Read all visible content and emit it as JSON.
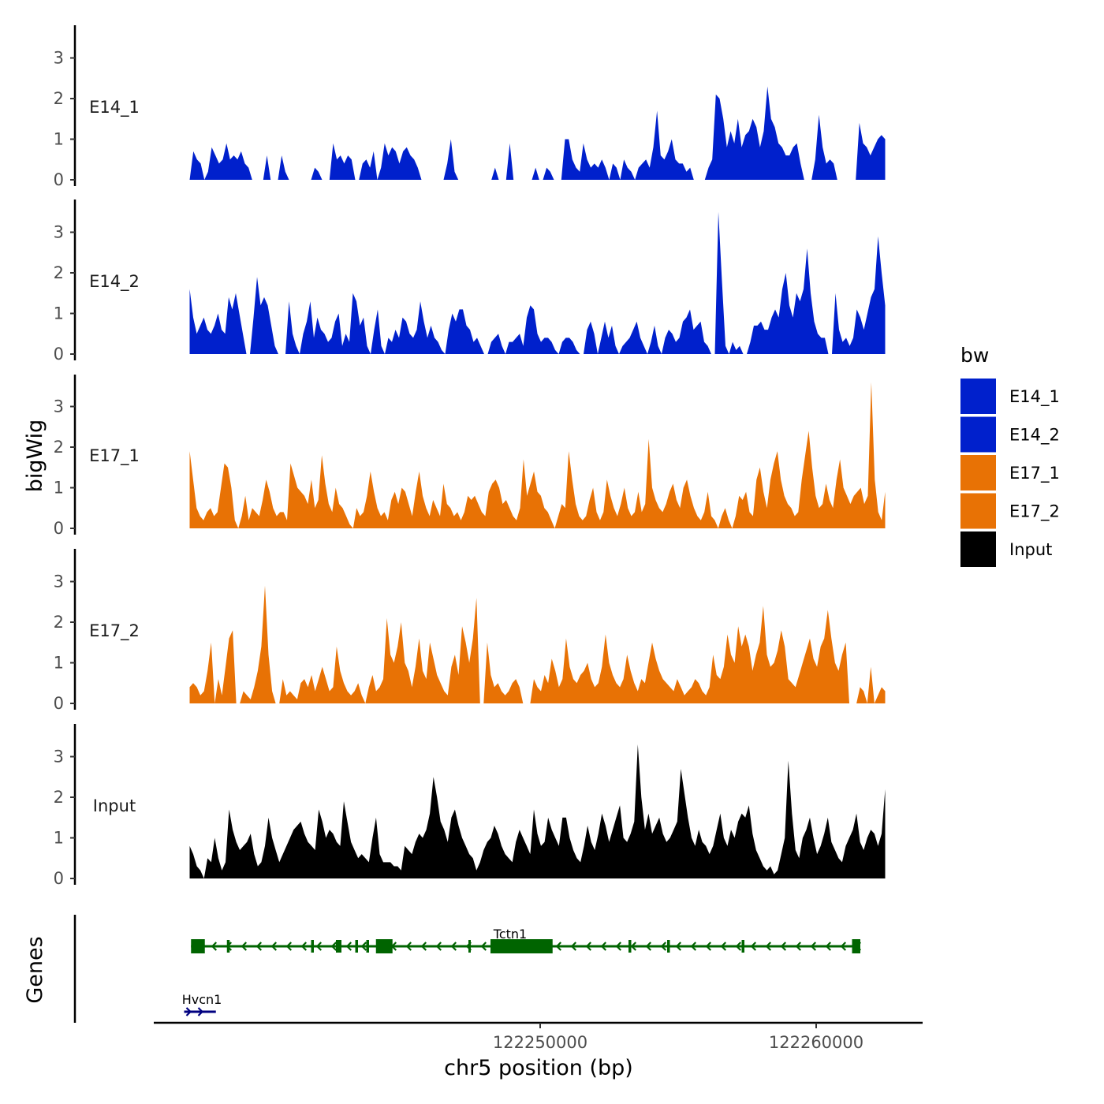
{
  "chart_data": {
    "type": "area",
    "xlabel": "chr5 position (bp)",
    "ylabel": "bigWig",
    "genes_label": "Genes",
    "xlim": [
      122236000,
      122263800
    ],
    "x_ticks": [
      122250000,
      122260000
    ],
    "x_tick_labels": [
      "122250000",
      "122260000"
    ],
    "y_ticks": [
      0,
      1,
      2,
      3
    ],
    "ylim": [
      0,
      3.7
    ],
    "legend": {
      "title": "bw",
      "entries": [
        {
          "label": "E14_1",
          "color": "#0020cc"
        },
        {
          "label": "E14_2",
          "color": "#0020cc"
        },
        {
          "label": "E17_1",
          "color": "#e87205"
        },
        {
          "label": "E17_2",
          "color": "#e87205"
        },
        {
          "label": "Input",
          "color": "#000000"
        }
      ]
    },
    "x_start": 122237300,
    "x_end": 122262500,
    "tracks": [
      {
        "name": "E14_1",
        "color": "#0020cc",
        "values": [
          0.2,
          0.7,
          0.5,
          0.4,
          0,
          0.2,
          0.8,
          0.6,
          0.4,
          0.5,
          0.9,
          0.5,
          0.6,
          0.5,
          0.7,
          0.4,
          0.3,
          0.5,
          0,
          0,
          0,
          0.6,
          0,
          0,
          0,
          0.6,
          0.2,
          0.3,
          0,
          0.2,
          0.4,
          0.2,
          0,
          0,
          0.3,
          0.2,
          0,
          0.2,
          0.8,
          0.9,
          0.5,
          0.6,
          0.4,
          0.6,
          0.5,
          0.3,
          0.2,
          0.4,
          0.5,
          0.3,
          0.7,
          0,
          0.3,
          0.9,
          0.6,
          0.8,
          0.7,
          0.4,
          0.7,
          0.8,
          0.6,
          0.5,
          0.3,
          0,
          0,
          0,
          0,
          0.3,
          0,
          0,
          0.4,
          1.0,
          0.2,
          0,
          0,
          0.5,
          0.3,
          0,
          0,
          0.4,
          0,
          0,
          0,
          0.3,
          0,
          0,
          0.7,
          0.9,
          0.6,
          0.3,
          0.1,
          0,
          0,
          0.5,
          0.3,
          0,
          0,
          0.3,
          0.2,
          0,
          0.2,
          0.3,
          1.0,
          1.0,
          0.5,
          0.3,
          0.2,
          0.9,
          0.5,
          0.3,
          0.4,
          0.3,
          0.5,
          0.3,
          0,
          0.4,
          0.3,
          0,
          0.5,
          0.3,
          0.2,
          0,
          0.3,
          0.4,
          0.5,
          0.3,
          0.8,
          1.7,
          0.6,
          0.5,
          0.7,
          1.0,
          0.5,
          0.4,
          0.4,
          0.2,
          0.3,
          0,
          0,
          0,
          0,
          0.3,
          0.5,
          2.1,
          2.0,
          1.5,
          0.8,
          1.2,
          0.9,
          1.5,
          0.8,
          1.1,
          1.2,
          1.5,
          1.3,
          0.8,
          1.2,
          2.3,
          1.5,
          1.3,
          0.9,
          0.8,
          0.6,
          0.6,
          0.8,
          0.9,
          0.4,
          0,
          0,
          0,
          0.5,
          1.6,
          0.8,
          0.4,
          0.5,
          0.4,
          0.3,
          0.9,
          0.5,
          0.4,
          0.4,
          0.5,
          1.4,
          0.9,
          0.8,
          0.6,
          0.8,
          1.0,
          1.1,
          1.0
        ],
        "gaps": [
          [
            122237300,
            122237330
          ],
          [
            122239500,
            122240000
          ],
          [
            122240900,
            122241500
          ],
          [
            122242200,
            122242400
          ],
          [
            122243300,
            122243500
          ],
          [
            122246200,
            122246500
          ],
          [
            122247100,
            122248300
          ],
          [
            122248500,
            122248800
          ],
          [
            122249000,
            122249700
          ],
          [
            122250400,
            122250800
          ],
          [
            122260700,
            122261500
          ]
        ]
      },
      {
        "name": "E14_2",
        "color": "#0020cc",
        "values": [
          1.6,
          0.9,
          0.5,
          0.7,
          0.9,
          0.6,
          0.5,
          0.7,
          1.0,
          0.6,
          0.5,
          1.4,
          1.1,
          1.5,
          1.0,
          0.5,
          0,
          0,
          0.9,
          1.9,
          1.2,
          1.4,
          1.2,
          0.7,
          0.2,
          0,
          0,
          0,
          1.3,
          0.5,
          0.2,
          0,
          0.5,
          0.8,
          1.3,
          0.4,
          0.9,
          0.6,
          0.5,
          0.3,
          0.4,
          0.8,
          1.0,
          0.2,
          0.5,
          0.3,
          1.5,
          1.3,
          0.7,
          0.9,
          0.2,
          0,
          0.6,
          1.1,
          0.2,
          0,
          0.4,
          0.3,
          0.6,
          0.4,
          0.9,
          0.8,
          0.5,
          0.4,
          0.6,
          1.3,
          0.8,
          0.4,
          0.7,
          0.4,
          0.3,
          0.1,
          0,
          0.6,
          1.0,
          0.8,
          1.1,
          1.1,
          0.7,
          0.6,
          0.3,
          0.4,
          0.2,
          0,
          0,
          0.3,
          0.4,
          0.5,
          0.2,
          0,
          0.3,
          0.3,
          0.4,
          0.5,
          0.2,
          0.9,
          1.2,
          1.1,
          0.5,
          0.3,
          0.4,
          0.4,
          0.3,
          0.1,
          0,
          0.3,
          0.4,
          0.4,
          0.3,
          0.1,
          0,
          0,
          0.6,
          0.8,
          0.5,
          0,
          0.4,
          0.8,
          0.4,
          0.7,
          0.2,
          0,
          0.2,
          0.3,
          0.4,
          0.6,
          0.8,
          0.4,
          0.2,
          0,
          0.3,
          0.7,
          0.2,
          0,
          0.4,
          0.6,
          0.5,
          0.3,
          0.4,
          0.8,
          0.9,
          1.1,
          0.6,
          0.7,
          0.8,
          0.3,
          0.2,
          0,
          0,
          3.5,
          1.8,
          0.2,
          0,
          0.3,
          0.1,
          0.2,
          0,
          0,
          0.3,
          0.7,
          0.7,
          0.8,
          0.6,
          0.6,
          0.9,
          1.1,
          0.9,
          1.6,
          2.0,
          1.2,
          0.9,
          1.5,
          1.3,
          1.6,
          2.6,
          1.5,
          0.8,
          0.5,
          0.4,
          0.4,
          0,
          0,
          1.5,
          0.6,
          0.3,
          0.4,
          0.2,
          0.4,
          1.1,
          0.9,
          0.6,
          1.0,
          1.4,
          1.6,
          2.9,
          2.0,
          1.2
        ]
      },
      {
        "name": "E17_1",
        "color": "#e87205",
        "values": [
          1.9,
          1.2,
          0.5,
          0.3,
          0.2,
          0.4,
          0.5,
          0.3,
          0.4,
          1.0,
          1.6,
          1.5,
          1.0,
          0.2,
          0,
          0.3,
          0.8,
          0.2,
          0.5,
          0.4,
          0.3,
          0.7,
          1.2,
          0.9,
          0.5,
          0.3,
          0.4,
          0.4,
          0.2,
          1.6,
          1.3,
          1.0,
          0.9,
          0.8,
          0.6,
          1.2,
          0.5,
          0.7,
          1.8,
          1.1,
          0.6,
          0.4,
          1.0,
          0.6,
          0.5,
          0.3,
          0.1,
          0,
          0.5,
          0.3,
          0.4,
          0.8,
          1.4,
          0.9,
          0.5,
          0.3,
          0.4,
          0.2,
          0.7,
          0.9,
          0.6,
          1.0,
          0.9,
          0.6,
          0.3,
          0.9,
          1.4,
          0.8,
          0.5,
          0.3,
          0.7,
          0.5,
          0.3,
          1.1,
          0.6,
          0.5,
          0.3,
          0.4,
          0.2,
          0.4,
          0.8,
          0.7,
          0.8,
          0.6,
          0.4,
          0.3,
          0.9,
          1.1,
          1.2,
          1.0,
          0.6,
          0.7,
          0.5,
          0.3,
          0.2,
          0.5,
          1.7,
          0.8,
          1.1,
          1.4,
          0.9,
          0.8,
          0.5,
          0.4,
          0.2,
          0,
          0.3,
          0.6,
          0.5,
          1.9,
          1.2,
          0.6,
          0.3,
          0.2,
          0.3,
          0.7,
          1.0,
          0.4,
          0.2,
          0.4,
          1.2,
          0.8,
          0.5,
          0.3,
          0.6,
          1.0,
          0.5,
          0.3,
          0.4,
          0.9,
          0.4,
          0.6,
          2.2,
          1.0,
          0.7,
          0.5,
          0.4,
          0.6,
          0.9,
          1.1,
          0.7,
          0.5,
          1.0,
          1.2,
          0.8,
          0.5,
          0.3,
          0.2,
          0.4,
          0.9,
          0.3,
          0.2,
          0,
          0.3,
          0.5,
          0.2,
          0,
          0.3,
          0.8,
          0.7,
          0.9,
          0.4,
          0.3,
          1.2,
          1.5,
          0.9,
          0.5,
          1.2,
          1.6,
          1.9,
          1.2,
          0.8,
          0.6,
          0.5,
          0.3,
          0.4,
          1.2,
          1.8,
          2.4,
          1.5,
          0.8,
          0.5,
          0.6,
          1.1,
          0.7,
          0.5,
          1.2,
          1.7,
          1.0,
          0.8,
          0.6,
          0.8,
          0.9,
          1.0,
          0.6,
          0.8,
          3.6,
          1.2,
          0.4,
          0.2,
          0.9
        ]
      },
      {
        "name": "E17_2",
        "color": "#e87205",
        "values": [
          0.4,
          0.5,
          0.4,
          0.2,
          0.3,
          0.8,
          1.5,
          1.8,
          0.6,
          0.2,
          0.9,
          1.6,
          1.8,
          0,
          0,
          0.3,
          0.2,
          0.1,
          0.4,
          0.8,
          1.4,
          2.9,
          1.2,
          0.3,
          0,
          0,
          0.6,
          0.2,
          0.3,
          0.2,
          0.1,
          0.5,
          0.6,
          0.4,
          0.7,
          0.3,
          0.6,
          0.9,
          0.6,
          0.3,
          0.4,
          1.4,
          0.8,
          0.5,
          0.3,
          0.2,
          0.3,
          0.5,
          0.2,
          0,
          0.4,
          0.7,
          0.3,
          0.4,
          0.6,
          2.1,
          1.2,
          1.0,
          1.4,
          2.0,
          1.0,
          0.8,
          0.4,
          0.9,
          1.6,
          0.8,
          0.6,
          1.5,
          1.1,
          0.7,
          0.5,
          0.3,
          0.2,
          0.9,
          1.2,
          0.7,
          1.9,
          1.5,
          1.0,
          1.6,
          2.6,
          1.2,
          0.9,
          1.5,
          0.7,
          0.4,
          0.5,
          0.3,
          0.2,
          0.3,
          0.5,
          0.6,
          0.4,
          1.8,
          1.2,
          0.8,
          0.6,
          0.4,
          0.3,
          0.7,
          0.5,
          1.1,
          0.8,
          0.4,
          0.6,
          1.6,
          0.9,
          0.6,
          0.5,
          0.7,
          0.8,
          1.0,
          0.6,
          0.4,
          0.5,
          0.9,
          1.7,
          1.0,
          0.7,
          0.5,
          0.4,
          0.6,
          1.2,
          0.8,
          0.5,
          0.3,
          0.6,
          0.5,
          1.0,
          1.5,
          1.1,
          0.8,
          0.6,
          0.5,
          0.4,
          0.3,
          0.6,
          0.4,
          0.2,
          0.3,
          0.4,
          0.6,
          0.5,
          0.3,
          0.2,
          0.4,
          1.2,
          0.7,
          0.6,
          0.9,
          1.7,
          1.2,
          1.0,
          1.9,
          1.4,
          1.7,
          1.4,
          0.8,
          1.2,
          1.5,
          2.4,
          1.2,
          0.9,
          1.0,
          1.3,
          1.8,
          1.4,
          0.6,
          0.5,
          0.4,
          0.7,
          1.0,
          1.3,
          1.6,
          1.1,
          0.9,
          1.4,
          1.6,
          2.3,
          1.6,
          1.0,
          0.8,
          1.2,
          1.5,
          1.1,
          0.6,
          0.5,
          0.4,
          0.3,
          0,
          0.9,
          0.3,
          0.2,
          0.4,
          0.3
        ],
        "gaps": [
          [
            122238100,
            122238250
          ],
          [
            122240350,
            122240500
          ],
          [
            122247800,
            122248000
          ],
          [
            122249300,
            122249700
          ],
          [
            122254200,
            122254300
          ],
          [
            122261100,
            122261500
          ],
          [
            122262050,
            122262120
          ]
        ]
      },
      {
        "name": "Input",
        "color": "#000000",
        "values": [
          0.8,
          0.6,
          0.3,
          0.2,
          0,
          0.5,
          0.4,
          1.0,
          0.5,
          0.2,
          0.4,
          1.7,
          1.2,
          0.9,
          0.7,
          0.8,
          0.9,
          1.1,
          0.6,
          0.3,
          0.4,
          0.8,
          1.5,
          1.0,
          0.7,
          0.4,
          0.6,
          0.8,
          1.0,
          1.2,
          1.3,
          1.4,
          1.1,
          0.9,
          0.8,
          0.7,
          1.7,
          1.4,
          1.0,
          1.2,
          1.1,
          0.9,
          0.8,
          1.9,
          1.4,
          0.9,
          0.7,
          0.5,
          0.6,
          0.5,
          0.4,
          1.0,
          1.5,
          0.6,
          0.4,
          0.4,
          0.4,
          0.3,
          0.3,
          0.2,
          0.8,
          0.7,
          0.6,
          0.9,
          1.1,
          1.0,
          1.2,
          1.6,
          2.5,
          2.0,
          1.4,
          1.2,
          0.9,
          1.5,
          1.7,
          1.3,
          1.0,
          0.8,
          0.6,
          0.5,
          0.2,
          0.4,
          0.7,
          0.9,
          1.0,
          1.3,
          1.1,
          0.8,
          0.6,
          0.5,
          0.4,
          0.9,
          1.2,
          1.0,
          0.8,
          0.6,
          1.7,
          1.1,
          0.8,
          0.9,
          1.5,
          1.2,
          1.0,
          0.8,
          1.5,
          1.5,
          1.0,
          0.7,
          0.5,
          0.4,
          0.8,
          1.3,
          0.9,
          0.7,
          1.1,
          1.6,
          1.3,
          0.9,
          1.2,
          1.5,
          1.8,
          1.0,
          0.9,
          1.1,
          1.4,
          3.3,
          2.0,
          1.2,
          1.6,
          1.1,
          1.3,
          1.5,
          1.1,
          0.9,
          1.0,
          1.2,
          1.4,
          2.7,
          2.1,
          1.5,
          1.0,
          0.8,
          1.2,
          0.9,
          0.8,
          0.6,
          0.8,
          1.2,
          1.6,
          1.0,
          0.8,
          1.2,
          1.0,
          1.4,
          1.6,
          1.5,
          1.8,
          1.1,
          0.7,
          0.5,
          0.3,
          0.2,
          0.3,
          0.1,
          0.2,
          0.6,
          1.0,
          2.9,
          1.6,
          0.7,
          0.5,
          1.0,
          1.2,
          1.5,
          1.0,
          0.6,
          0.8,
          1.1,
          1.5,
          0.9,
          0.7,
          0.5,
          0.4,
          0.8,
          1.0,
          1.2,
          1.6,
          0.9,
          0.7,
          1.0,
          1.2,
          1.1,
          0.8,
          1.1,
          2.2
        ]
      }
    ],
    "genes": [
      {
        "name": "Tctn1",
        "strand": "-",
        "start": 122237350,
        "end": 122261600,
        "exons": [
          [
            122237350,
            122237850
          ],
          [
            122238650,
            122238750
          ],
          [
            122241700,
            122241800
          ],
          [
            122242600,
            122242800
          ],
          [
            122243300,
            122243400
          ],
          [
            122243700,
            122243800
          ],
          [
            122244050,
            122244650
          ],
          [
            122247400,
            122247480
          ],
          [
            122248200,
            122250450
          ],
          [
            122253200,
            122253300
          ],
          [
            122254600,
            122254700
          ],
          [
            122257300,
            122257400
          ],
          [
            122261300,
            122261600
          ]
        ]
      },
      {
        "name": "Hvcn1",
        "strand": "+",
        "start": 122237100,
        "end": 122238250,
        "exons": []
      }
    ]
  }
}
